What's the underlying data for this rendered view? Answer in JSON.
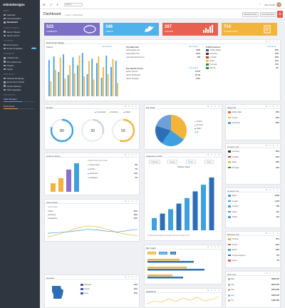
{
  "app": {
    "logo": "AdminDesigns"
  },
  "sidebar": {
    "sections": [
      {
        "label": "MENU",
        "items": [
          {
            "label": "Calendar"
          },
          {
            "label": "Documentation"
          },
          {
            "label": "Dashboard",
            "active": true
          }
        ]
      },
      {
        "label": "ADMIN PANELS",
        "items": [
          {
            "label": "Admin Plugins"
          },
          {
            "label": "Admin Forms"
          }
        ]
      },
      {
        "label": "SYSTEMS",
        "items": [
          {
            "label": "Ecommerce"
          },
          {
            "label": "Email Templates",
            "badge": "NEW"
          }
        ]
      },
      {
        "label": "ELEMENTS",
        "items": [
          {
            "label": "UI Elements"
          },
          {
            "label": "Form Elements"
          },
          {
            "label": "Plugins"
          },
          {
            "label": "Pages"
          }
        ]
      },
      {
        "label": "PROJECTS",
        "items": [
          {
            "label": "Website Redesign"
          },
          {
            "label": "Ecommerce Panel"
          },
          {
            "label": "Adobe Mockup"
          },
          {
            "label": "SSD Upgrades"
          }
        ]
      }
    ],
    "stats_label": "STATISTICS",
    "stats": [
      {
        "label": "Task Manager",
        "pct": 0.6,
        "color": "#3fa0e0"
      },
      {
        "label": "Documents",
        "pct": 0.45,
        "color": "#f3a03c"
      }
    ]
  },
  "topbar": {
    "search_placeholder": "Search...",
    "user": "John Smith",
    "icons": [
      "menu-icon",
      "expand-icon",
      "magic-icon"
    ],
    "notif_icon": "bell-icon"
  },
  "breadcrumb": {
    "title": "Dashboard",
    "home": "Home",
    "current": "Dashboard",
    "buttons": [
      "Important Posts",
      "Live Chat Flows"
    ]
  },
  "tiles": [
    {
      "value": "523",
      "label": "COMMENTS",
      "color": "#7d6fc5"
    },
    {
      "value": "348",
      "label": "TWEETS",
      "color": "#4fb2ea"
    },
    {
      "value": "267",
      "label": "VISITORS",
      "color": "#e8604f"
    },
    {
      "value": "714",
      "label": "CONVERSIONS",
      "color": "#f3b43c"
    }
  ],
  "data_panel": {
    "title": "Data Panel Widget",
    "chart_title": "Visitors",
    "chart_link": "Last 30 Days",
    "bars": [
      {
        "a": 82,
        "b": 34
      },
      {
        "a": 90,
        "b": 60
      },
      {
        "a": 55,
        "b": 88
      },
      {
        "a": 95,
        "b": 40
      },
      {
        "a": 48,
        "b": 70
      },
      {
        "a": 88,
        "b": 52
      },
      {
        "a": 70,
        "b": 92
      },
      {
        "a": 98,
        "b": 45
      },
      {
        "a": 50,
        "b": 80
      },
      {
        "a": 85,
        "b": 38
      },
      {
        "a": 75,
        "b": 90
      },
      {
        "a": 42,
        "b": 66
      },
      {
        "a": 92,
        "b": 50
      },
      {
        "a": 66,
        "b": 84
      },
      {
        "a": 80,
        "b": 30
      }
    ],
    "referrals": {
      "title": "Top Referrals",
      "link": "View Report",
      "items": [
        {
          "label": "www.google.com",
          "value": "1,926"
        },
        {
          "label": "www.yahoo.com",
          "value": "1,254"
        },
        {
          "label": "www.themeforest.com",
          "value": "783"
        }
      ]
    },
    "searches": {
      "title": "Top Search Terms",
      "link": "View Report",
      "items": [
        {
          "label": "admin themes",
          "value": "14.5%"
        },
        {
          "label": "admin dashboard",
          "value": "12.4%"
        },
        {
          "label": "admin template",
          "value": "8.6%"
        }
      ]
    },
    "sources": {
      "title": "Traffic Sources",
      "link": "View Report",
      "items": [
        {
          "label": "United States",
          "value": "23%",
          "flag": "#3b5aa8"
        },
        {
          "label": "Germany",
          "value": "19%",
          "flag": "#333333"
        },
        {
          "label": "Canada",
          "value": "18%",
          "flag": "#d8342c"
        },
        {
          "label": "Spain",
          "value": "15%",
          "flag": "#f2c23c"
        },
        {
          "label": "Portugal",
          "value": "11%",
          "flag": "#2c8f3c"
        },
        {
          "label": "Mexico",
          "value": "9%",
          "flag": "#2f8a4c"
        }
      ]
    }
  },
  "donuts": {
    "title": "Donuts",
    "legend": [
      {
        "label": "Completed",
        "color": "#3fa0e0"
      },
      {
        "label": "Pending",
        "color": "#f3b43c"
      },
      {
        "label": "Failed",
        "color": "#e8604f"
      }
    ],
    "items": [
      {
        "value": 80,
        "color": "#3fa0e0"
      },
      {
        "value": 30,
        "color": "#cfd4da"
      },
      {
        "value": 55,
        "color": "#f3b43c"
      }
    ]
  },
  "pie": {
    "title": "Pie Chart",
    "slices": [
      {
        "label": "Firefox",
        "value": 35,
        "color": "#f3b43c"
      },
      {
        "label": "Chrome",
        "value": 25,
        "color": "#3fa0e0"
      },
      {
        "label": "Safari",
        "value": 20,
        "color": "#2c6fb7"
      },
      {
        "label": "IE",
        "value": 20,
        "color": "#6e9fd8"
      }
    ]
  },
  "column": {
    "title": "Column Graph",
    "subtitle": "Lifetime Revenue Totals",
    "bars": [
      {
        "v": 30,
        "c": "#f3b43c"
      },
      {
        "v": 48,
        "c": "#f3b43c"
      },
      {
        "v": 78,
        "c": "#8a6fd0"
      },
      {
        "v": 100,
        "c": "#3fa0e0"
      }
    ],
    "rows": [
      {
        "label": "Adobe Reel",
        "value": "8%",
        "color": "#f3b43c"
      },
      {
        "label": "Firefox",
        "value": "7%",
        "color": "#8a6fd0"
      },
      {
        "label": "Facebook",
        "value": "11%",
        "color": "#3fa0e0"
      },
      {
        "label": "Instagram",
        "value": "7%",
        "color": "#3fa0e0"
      }
    ]
  },
  "frequency": {
    "title": "Frequency Chart",
    "tabs": [
      "Fullstack",
      "Design",
      "Mobile",
      "Video"
    ],
    "heading": "Mobile Views",
    "bars": [
      22,
      30,
      38,
      48,
      58,
      70,
      82,
      95
    ],
    "footer": "Consistently ahead the schedule with an increase of 7%"
  },
  "area": {
    "title": "Area Graph",
    "subtitle": "Social Stats",
    "rows": [
      {
        "label": "Twitter",
        "value": "32%"
      },
      {
        "label": "Facebook",
        "value": "46%"
      },
      {
        "label": "GooglePlus",
        "value": "22%"
      }
    ],
    "series_a": [
      10,
      18,
      28,
      38,
      45,
      42,
      34,
      24,
      18,
      14
    ],
    "series_b": [
      22,
      24,
      26,
      30,
      34,
      32,
      28,
      26,
      30,
      34
    ]
  },
  "bar_graph": {
    "title": "Bar Graph",
    "tabs": [
      "Leaders",
      "Success",
      "Fails"
    ],
    "bars": [
      {
        "a": 0.45,
        "b": 0.65
      },
      {
        "a": 0.55,
        "b": 0.8
      },
      {
        "a": 0.35,
        "b": 0.5
      }
    ]
  },
  "geo": {
    "title": "Georeal",
    "rows": [
      {
        "label": "Missouri",
        "value": "45%"
      },
      {
        "label": "Illinois",
        "value": "30%"
      },
      {
        "label": "Iowa",
        "value": "25%"
      }
    ]
  },
  "sparklines": {
    "title": "Sparklines"
  },
  "right_panels": [
    {
      "title": "Data List",
      "rows": [
        {
          "label": "Adobe Reel",
          "value": "30%",
          "color": "#e8604f"
        },
        {
          "label": "Firefox",
          "value": "22%",
          "color": "#f3b43c"
        },
        {
          "label": "Facebook",
          "value": "18%",
          "color": "#3fa0e0"
        }
      ]
    },
    {
      "title": "Country List",
      "rows": [
        {
          "label": "Germany",
          "value": "26%",
          "color": "#333333"
        },
        {
          "label": "Canada",
          "value": "24%",
          "color": "#d8342c"
        },
        {
          "label": "Spain",
          "value": "18%",
          "color": "#f2c23c"
        },
        {
          "label": "Portugal",
          "value": "14%",
          "color": "#2c8f3c"
        }
      ]
    },
    {
      "title": "Counter List",
      "rows": [
        {
          "label": "Apple",
          "value": "1,926",
          "color": "#3fa0e0"
        },
        {
          "label": "Google",
          "value": "1,254",
          "color": "#3fa0e0"
        },
        {
          "label": "Amazon",
          "value": "783",
          "color": "#3fa0e0"
        },
        {
          "label": "Yahoo",
          "value": "612",
          "color": "#3fa0e0"
        },
        {
          "label": "Twitter",
          "value": "410",
          "color": "#3fa0e0"
        }
      ]
    },
    {
      "title": "Browser List",
      "rows": [
        {
          "label": "Chrome",
          "value": "45%",
          "color": "#f3b43c"
        },
        {
          "label": "Firefox",
          "value": "32%",
          "color": "#e8604f"
        },
        {
          "label": "Safari",
          "value": "18%",
          "color": "#3fa0e0"
        },
        {
          "label": "Internet Explorer",
          "value": "8%",
          "color": "#2c6fb7"
        },
        {
          "label": "Opera",
          "value": "4%",
          "color": "#e8604f"
        }
      ]
    },
    {
      "title": "User List",
      "rows": [
        {
          "label": "Bob",
          "value": "$860,355",
          "color": "#c9a184"
        },
        {
          "label": "Sue",
          "value": "$642,720",
          "color": "#8fa7c9"
        },
        {
          "label": "Ken",
          "value": "$451,060",
          "color": "#c9a184"
        },
        {
          "label": "Ann",
          "value": "$320,300",
          "color": "#8fa7c9"
        },
        {
          "label": "Tim",
          "value": "$186,200",
          "color": "#c9a184"
        }
      ]
    }
  ]
}
